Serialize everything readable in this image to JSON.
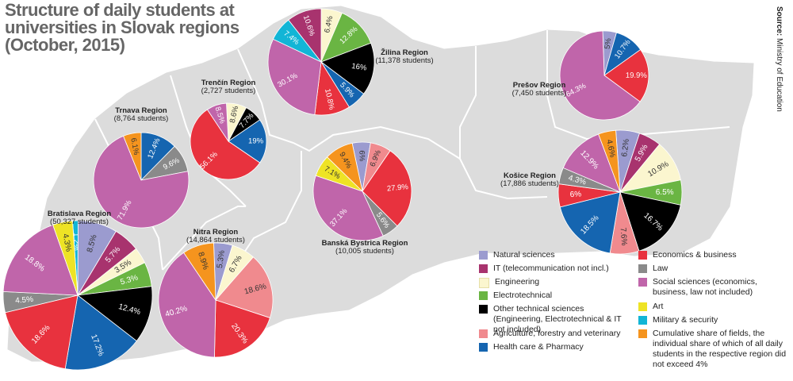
{
  "title_lines": [
    "Structure of daily students at",
    "universities in Slovak regions",
    "(October, 2015)"
  ],
  "source": {
    "label": "Source:",
    "text": "Ministry of Education"
  },
  "colors": {
    "natural_sciences": "#9b9bcf",
    "it": "#a8336e",
    "engineering": "#fbf6cf",
    "electrotechnical": "#6ab543",
    "other_technical": "#000000",
    "agriculture": "#f08a8e",
    "health_care": "#1565b0",
    "economics": "#e8323e",
    "law": "#8a8a8a",
    "social_sciences": "#c065aa",
    "art": "#eee325",
    "military": "#12b5d6",
    "cumulative": "#f5941e",
    "map_fill": "#dcdcdc",
    "map_border": "#ffffff"
  },
  "legend": [
    {
      "key": "natural_sciences",
      "label": "Natural sciences"
    },
    {
      "key": "it",
      "label": "IT (telecommunication not incl.)"
    },
    {
      "key": "engineering",
      "label": "Engineering"
    },
    {
      "key": "electrotechnical",
      "label": "Electrotechnical"
    },
    {
      "key": "other_technical",
      "label": "Other technical sciences (Engineering, Electrotechnical & IT not included)"
    },
    {
      "key": "agriculture",
      "label": "Agriculture, forestry and veterinary"
    },
    {
      "key": "health_care",
      "label": "Health care & Pharmacy"
    },
    {
      "key": "economics",
      "label": "Economics & business"
    },
    {
      "key": "law",
      "label": "Law"
    },
    {
      "key": "social_sciences",
      "label": "Social sciences (economics, business, law not included)"
    },
    {
      "key": "art",
      "label": "Art"
    },
    {
      "key": "military",
      "label": "Military & security"
    },
    {
      "key": "cumulative",
      "label": "Cumulative share of fields, the individual share of which of all daily students in the respective region did not exceed 4%"
    }
  ],
  "chart_data": [
    {
      "type": "pie",
      "region": "Bratislava Region",
      "students": "(50,327 students)",
      "slices": [
        {
          "key": "military",
          "label": "1.2%",
          "value": 1.2
        },
        {
          "key": "natural_sciences",
          "label": "8.5%",
          "value": 8.5
        },
        {
          "key": "it",
          "label": "5.7%",
          "value": 5.7
        },
        {
          "key": "engineering",
          "label": "3.5%",
          "value": 3.5
        },
        {
          "key": "electrotechnical",
          "label": "5.3%",
          "value": 5.3
        },
        {
          "key": "other_technical",
          "label": "12.4%",
          "value": 12.4
        },
        {
          "key": "health_care",
          "label": "17.2%",
          "value": 17.2
        },
        {
          "key": "economics",
          "label": "18.6%",
          "value": 18.6
        },
        {
          "key": "law",
          "label": "4.5%",
          "value": 4.5
        },
        {
          "key": "social_sciences",
          "label": "18.8%",
          "value": 18.8
        },
        {
          "key": "art",
          "label": "4.3%",
          "value": 4.3
        }
      ]
    },
    {
      "type": "pie",
      "region": "Trnava Region",
      "students": "(8,764 students)",
      "slices": [
        {
          "key": "health_care",
          "label": "12.4%",
          "value": 12.4
        },
        {
          "key": "law",
          "label": "9.6%",
          "value": 9.6
        },
        {
          "key": "social_sciences",
          "label": "71.9%",
          "value": 71.9
        },
        {
          "key": "cumulative",
          "label": "6.1%",
          "value": 6.1
        }
      ]
    },
    {
      "type": "pie",
      "region": "Trenčín Region",
      "students": "(2,727 students)",
      "slices": [
        {
          "key": "engineering",
          "label": "8.6%",
          "value": 8.6
        },
        {
          "key": "other_technical",
          "label": "7.7%",
          "value": 7.7
        },
        {
          "key": "health_care",
          "label": "19%",
          "value": 19
        },
        {
          "key": "economics",
          "label": "56.1%",
          "value": 56.1
        },
        {
          "key": "social_sciences",
          "label": "8.5%",
          "value": 8.5
        }
      ]
    },
    {
      "type": "pie",
      "region": "Nitra Region",
      "students": "(14,864 students)",
      "slices": [
        {
          "key": "natural_sciences",
          "label": "5.3%",
          "value": 5.3
        },
        {
          "key": "engineering",
          "label": "6.7%",
          "value": 6.7
        },
        {
          "key": "agriculture",
          "label": "18.6%",
          "value": 18.6
        },
        {
          "key": "economics",
          "label": "20.3%",
          "value": 20.3
        },
        {
          "key": "social_sciences",
          "label": "40.2%",
          "value": 40.2
        },
        {
          "key": "cumulative",
          "label": "8.9%",
          "value": 8.9
        }
      ]
    },
    {
      "type": "pie",
      "region": "Žilina Region",
      "students": "(11,378 students)",
      "slices": [
        {
          "key": "it",
          "label": "10.6%",
          "value": 10.6
        },
        {
          "key": "engineering",
          "label": "6.4%",
          "value": 6.4
        },
        {
          "key": "electrotechnical",
          "label": "12.8%",
          "value": 12.8
        },
        {
          "key": "other_technical",
          "label": "16%",
          "value": 16
        },
        {
          "key": "health_care",
          "label": "5.9%",
          "value": 5.9
        },
        {
          "key": "economics",
          "label": "10.8%",
          "value": 10.8
        },
        {
          "key": "social_sciences",
          "label": "30.1%",
          "value": 30.1
        },
        {
          "key": "military",
          "label": "7.4%",
          "value": 7.4
        }
      ]
    },
    {
      "type": "pie",
      "region": "Banská Bystrica Region",
      "students": "(10,005 students)",
      "slices": [
        {
          "key": "natural_sciences",
          "label": "6%",
          "value": 6
        },
        {
          "key": "agriculture",
          "label": "6.9%",
          "value": 6.9
        },
        {
          "key": "economics",
          "label": "27.9%",
          "value": 27.9
        },
        {
          "key": "law",
          "label": "5.6%",
          "value": 5.6
        },
        {
          "key": "social_sciences",
          "label": "37.1%",
          "value": 37.1
        },
        {
          "key": "art",
          "label": "7.1%",
          "value": 7.1
        },
        {
          "key": "cumulative",
          "label": "9.4%",
          "value": 9.4
        }
      ]
    },
    {
      "type": "pie",
      "region": "Prešov Region",
      "students": "(7,450 students)",
      "slices": [
        {
          "key": "natural_sciences",
          "label": "5%",
          "value": 5
        },
        {
          "key": "health_care",
          "label": "10.7%",
          "value": 10.7
        },
        {
          "key": "economics",
          "label": "19.9%",
          "value": 19.9
        },
        {
          "key": "social_sciences",
          "label": "64.3%",
          "value": 64.3
        }
      ]
    },
    {
      "type": "pie",
      "region": "Košice Region",
      "students": "(17,886 students)",
      "slices": [
        {
          "key": "natural_sciences",
          "label": "6.2%",
          "value": 6.2
        },
        {
          "key": "it",
          "label": "5.9%",
          "value": 5.9
        },
        {
          "key": "engineering",
          "label": "10.9%",
          "value": 10.9
        },
        {
          "key": "electrotechnical",
          "label": "6.5%",
          "value": 6.5
        },
        {
          "key": "other_technical",
          "label": "16.7%",
          "value": 16.7
        },
        {
          "key": "agriculture",
          "label": "7.6%",
          "value": 7.6
        },
        {
          "key": "health_care",
          "label": "18.5%",
          "value": 18.5
        },
        {
          "key": "economics",
          "label": "6%",
          "value": 6
        },
        {
          "key": "law",
          "label": "4.3%",
          "value": 4.3
        },
        {
          "key": "social_sciences",
          "label": "12.9%",
          "value": 12.9
        },
        {
          "key": "cumulative",
          "label": "4.6%",
          "value": 4.6
        }
      ]
    }
  ]
}
